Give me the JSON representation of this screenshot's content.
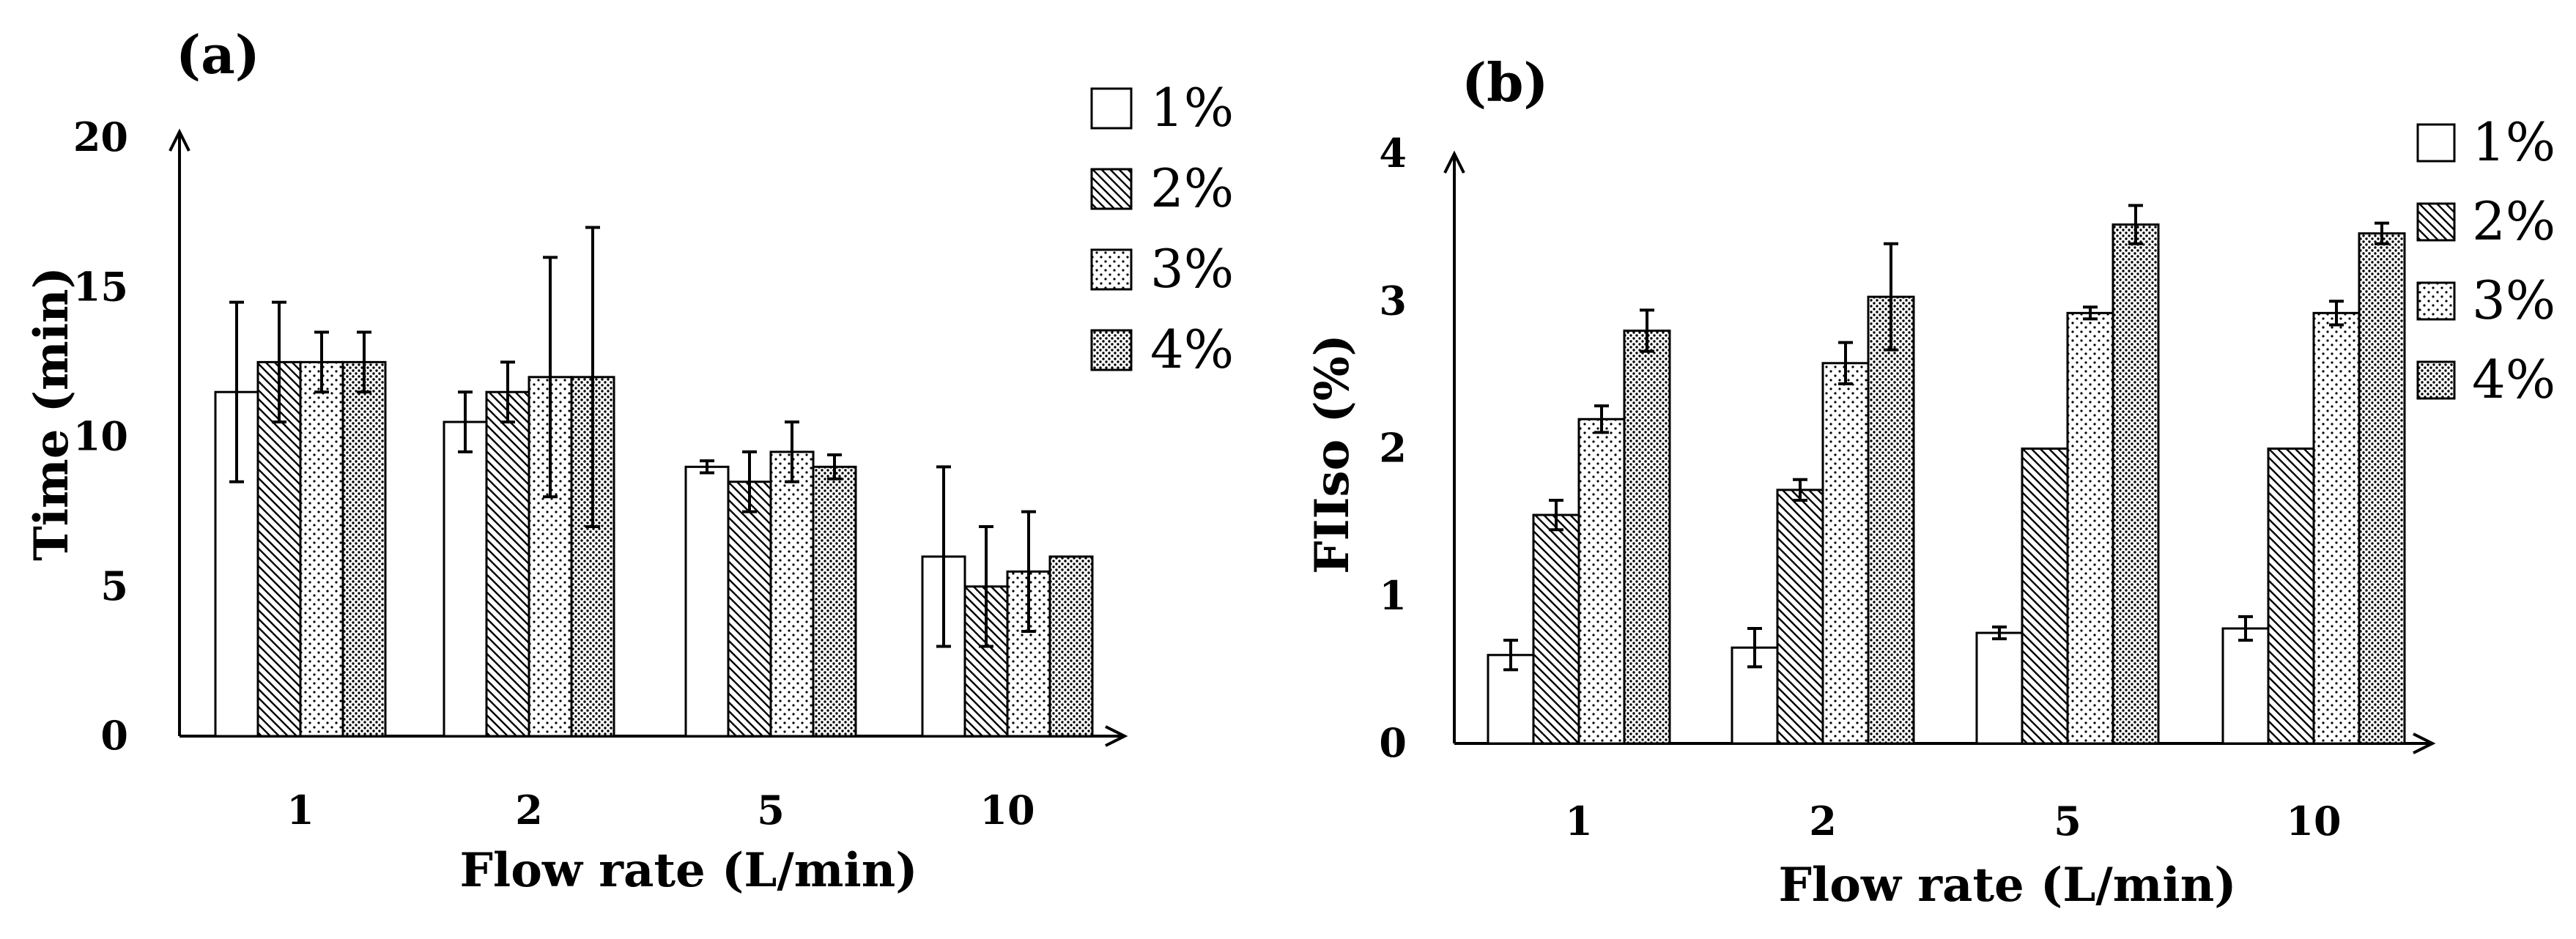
{
  "chart_data": [
    {
      "type": "bar",
      "panel_label": "(a)",
      "title": "",
      "xlabel": "Flow rate (L/min)",
      "ylabel": "Time (min)",
      "categories": [
        "1",
        "2",
        "5",
        "10"
      ],
      "ylim": [
        0,
        20
      ],
      "yticks": [
        "0",
        "5",
        "10",
        "15",
        "20"
      ],
      "grid": false,
      "legend_position": "top-right",
      "series": [
        {
          "name": "1%",
          "values": [
            11.5,
            10.5,
            9.0,
            6.0
          ],
          "errors": [
            3.0,
            1.0,
            0.2,
            3.0
          ]
        },
        {
          "name": "2%",
          "values": [
            12.5,
            11.5,
            8.5,
            5.0
          ],
          "errors": [
            2.0,
            1.0,
            1.0,
            2.0
          ]
        },
        {
          "name": "3%",
          "values": [
            12.5,
            12.0,
            9.5,
            5.5
          ],
          "errors": [
            1.0,
            4.0,
            1.0,
            2.0
          ]
        },
        {
          "name": "4%",
          "values": [
            12.5,
            12.0,
            9.0,
            6.0
          ],
          "errors": [
            1.0,
            5.0,
            0.4,
            0.0
          ]
        }
      ]
    },
    {
      "type": "bar",
      "panel_label": "(b)",
      "title": "",
      "xlabel": "Flow rate (L/min)",
      "ylabel": "FIIso (%)",
      "categories": [
        "1",
        "2",
        "5",
        "10"
      ],
      "ylim": [
        0,
        4
      ],
      "yticks": [
        "0",
        "1",
        "2",
        "3",
        "4"
      ],
      "grid": false,
      "legend_position": "top-right",
      "series": [
        {
          "name": "1%",
          "values": [
            0.6,
            0.65,
            0.75,
            0.78
          ],
          "errors": [
            0.1,
            0.13,
            0.04,
            0.08
          ]
        },
        {
          "name": "2%",
          "values": [
            1.55,
            1.72,
            2.0,
            2.0
          ],
          "errors": [
            0.1,
            0.07,
            0.0,
            0.0
          ]
        },
        {
          "name": "3%",
          "values": [
            2.2,
            2.58,
            2.92,
            2.92
          ],
          "errors": [
            0.09,
            0.14,
            0.04,
            0.08
          ]
        },
        {
          "name": "4%",
          "values": [
            2.8,
            3.03,
            3.52,
            3.46
          ],
          "errors": [
            0.14,
            0.36,
            0.13,
            0.07
          ]
        }
      ]
    }
  ]
}
